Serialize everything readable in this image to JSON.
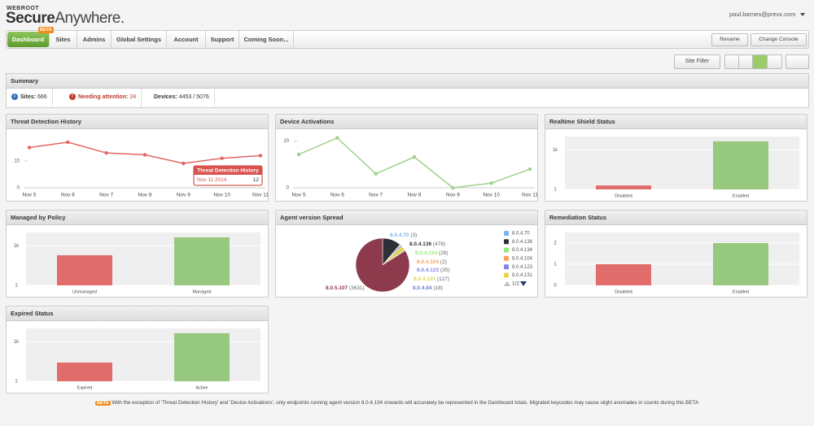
{
  "header": {
    "brand": "WEBROOT",
    "product_main": "Secure",
    "product_sub": "Anywhere.",
    "user": "paul.barnes@prevx.com"
  },
  "nav": {
    "tabs": [
      "Dashboard",
      "Sites",
      "Admins",
      "Global Settings",
      "Account",
      "Support",
      "Coming Soon..."
    ],
    "badge": "BETA",
    "actions": [
      "Rename",
      "Change Console"
    ]
  },
  "toolbar": {
    "filter": "Site Filter"
  },
  "summary": {
    "title": "Summary",
    "items": [
      {
        "label": "Sites:",
        "value": 666
      },
      {
        "label": "Needing attention:",
        "value": 24
      },
      {
        "label": "Devices:",
        "value": "4453 / 5076"
      }
    ]
  },
  "panels": [
    {
      "title": "Threat Detection History",
      "tooltip": {
        "title": "Threat Detection History",
        "x": "Nov 11 2014",
        "value": 12
      },
      "chart_data": {
        "type": "line",
        "categories": [
          "Nov 5",
          "Nov 6",
          "Nov 7",
          "Nov 8",
          "Nov 9",
          "Nov 10",
          "Nov 11"
        ],
        "series": [
          {
            "name": "Threat Detection History",
            "color": "#e06666",
            "values": [
              15,
              17,
              13,
              12.3,
              9.1,
              11,
              12
            ]
          }
        ],
        "ylim": [
          0,
          20
        ],
        "yticks": [
          0,
          10
        ]
      }
    },
    {
      "title": "Device Activations",
      "chart_data": {
        "type": "line",
        "categories": [
          "Nov 5",
          "Nov 6",
          "Nov 7",
          "Nov 8",
          "Nov 9",
          "Nov 10",
          "Nov 11"
        ],
        "series": [
          {
            "name": "Device Activations",
            "color": "#9fd18b",
            "values": [
              14.3,
              21.4,
              6,
              13.2,
              0,
              2,
              8
            ]
          }
        ],
        "ylim": [
          0,
          23
        ],
        "yticks": [
          0,
          20
        ]
      }
    },
    {
      "title": "Realtime Shield Status",
      "chart_data": {
        "type": "bar",
        "log_scale": true,
        "categories": [
          "Disabled",
          "Enabled"
        ],
        "values": [
          2,
          4400
        ],
        "colors": [
          "#e06c6c",
          "#96c97f"
        ],
        "ylim": [
          1,
          10000
        ],
        "yticks": [
          1,
          {
            "value": 1000,
            "label": "1k"
          }
        ]
      }
    },
    {
      "title": "Managed by Policy",
      "chart_data": {
        "type": "bar",
        "log_scale": true,
        "categories": [
          "Unmanaged",
          "Managed"
        ],
        "values": [
          190,
          4300
        ],
        "colors": [
          "#e06c6c",
          "#96c97f"
        ],
        "ylim": [
          1,
          10000
        ],
        "yticks": [
          1,
          {
            "value": 1000,
            "label": "1k"
          }
        ]
      }
    },
    {
      "title": "Agent version Spread",
      "legend_pager": "1/2",
      "chart_data": {
        "type": "pie",
        "categories": [
          "8.0.4.70",
          "8.0.4.136",
          "8.0.4.134",
          "8.0.4.104",
          "8.0.4.123",
          "8.0.4.131",
          "8.0.4.84",
          "8.0.5.107"
        ],
        "values": [
          3,
          478,
          28,
          2,
          35,
          127,
          18,
          3631
        ],
        "value_labels": [
          "(3)",
          "(478)",
          "(28)",
          "(2)",
          "(35)",
          "(127)",
          "(18)",
          "(3631)"
        ],
        "colors": [
          "#7cb5ec",
          "#2f2f3a",
          "#90ed7d",
          "#f7a35c",
          "#8085e9",
          "#e4d354",
          "#6a7fd0",
          "#8d3a4c"
        ]
      }
    },
    {
      "title": "Remediation Status",
      "chart_data": {
        "type": "bar",
        "log_scale": false,
        "categories": [
          "Disabled",
          "Enabled"
        ],
        "values": [
          1,
          2
        ],
        "colors": [
          "#e06c6c",
          "#96c97f"
        ],
        "ylim": [
          0,
          2.5
        ],
        "yticks": [
          0,
          1,
          2
        ]
      }
    },
    {
      "title": "Expired Status",
      "chart_data": {
        "type": "bar",
        "log_scale": true,
        "categories": [
          "Expired",
          "Active"
        ],
        "values": [
          26,
          4400
        ],
        "colors": [
          "#e06c6c",
          "#96c97f"
        ],
        "ylim": [
          1,
          10000
        ],
        "yticks": [
          1,
          {
            "value": 1000,
            "label": "1k"
          }
        ]
      }
    }
  ],
  "footer": {
    "badge": "BETA",
    "text": "With the exception of 'Threat Detection History' and 'Device Activations', only endpoints running agent version 8.0.4.134 onwards will accurately be represented in the Dashboard totals. Migrated keycodes may cause slight anomalies in counts during this BETA"
  }
}
